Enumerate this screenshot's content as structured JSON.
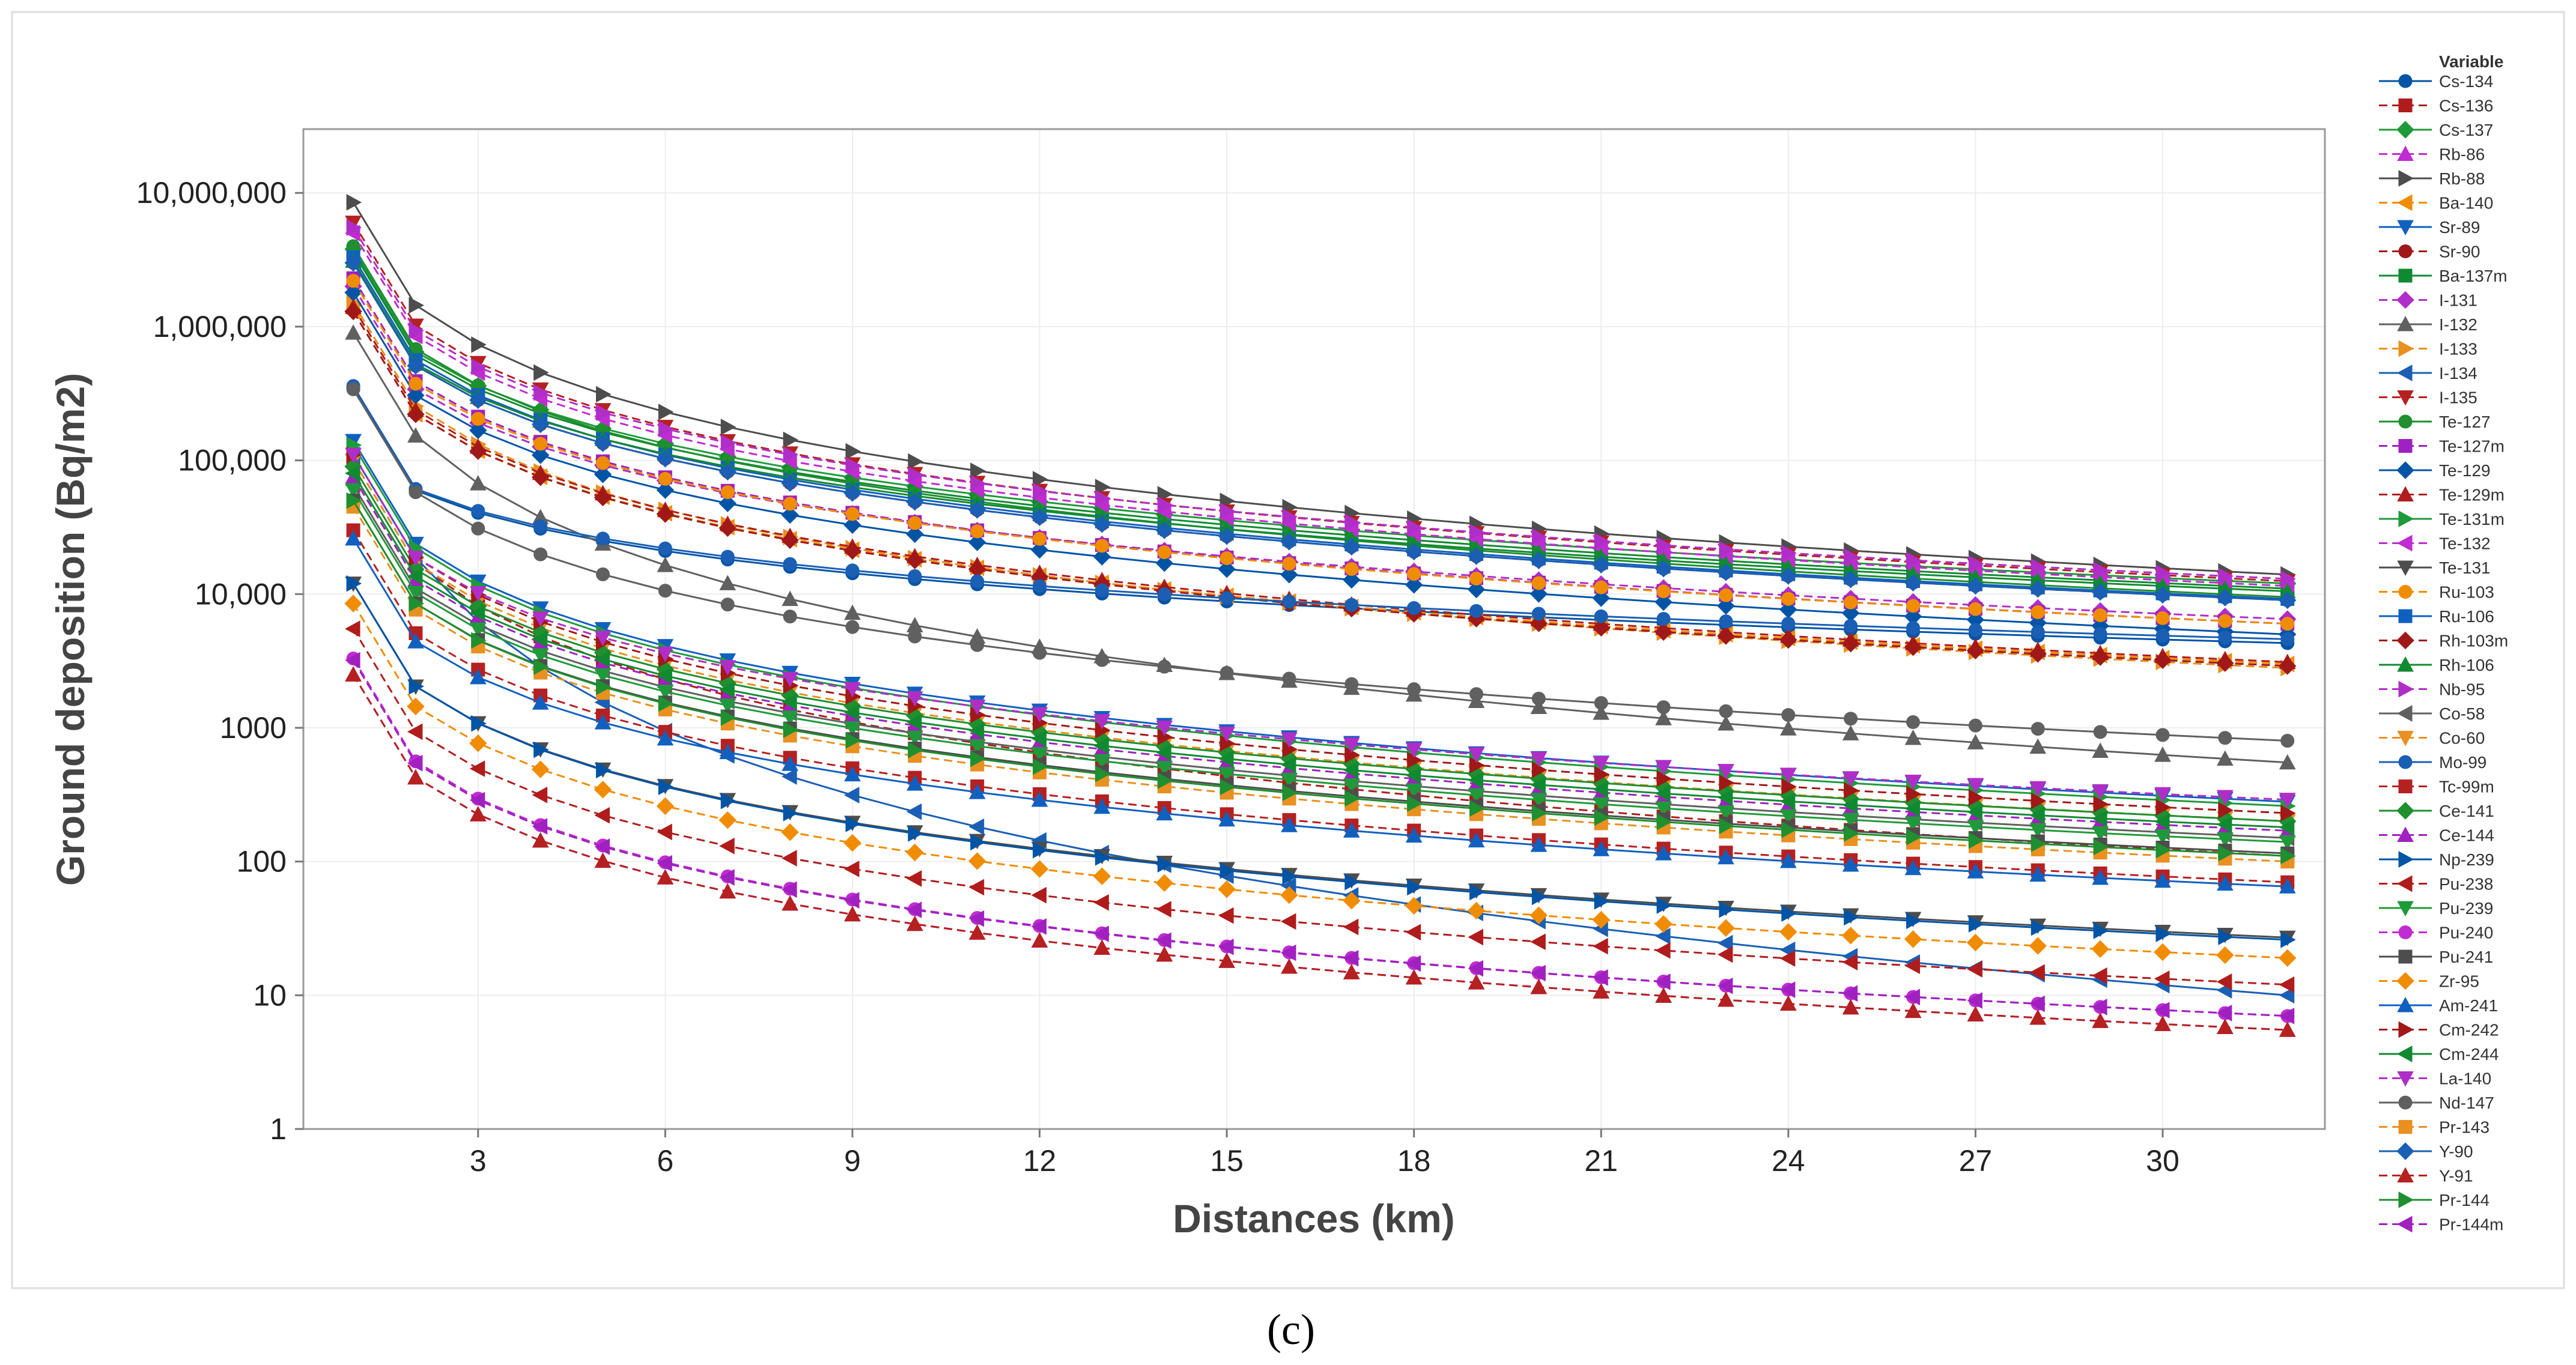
{
  "caption": "(c)",
  "colors": [
    "#0054a6",
    "#b01c1c",
    "#1f9a3a",
    "#c02bd2",
    "#4d4d4d",
    "#f08c00",
    "#1060c0",
    "#a01818",
    "#108a30",
    "#b02ec8",
    "#606060",
    "#e89020",
    "#1a5fb4",
    "#b52020",
    "#1f8f2f",
    "#a020c0"
  ],
  "chart_data": {
    "type": "line",
    "title": "",
    "xlabel": "Distances (km)",
    "ylabel": "Ground deposition (Bq/m2)",
    "yscale": "log",
    "xlim": [
      0.2,
      32.6
    ],
    "ylim": [
      1,
      30000000
    ],
    "xticks": [
      3,
      6,
      9,
      12,
      15,
      18,
      21,
      24,
      27,
      30
    ],
    "xtick_labels": [
      "3",
      "6",
      "9",
      "12",
      "15",
      "18",
      "21",
      "24",
      "27",
      "30"
    ],
    "yticks": [
      1,
      10,
      100,
      1000,
      10000,
      100000,
      1000000,
      10000000
    ],
    "ytick_labels": [
      "1",
      "10",
      "100",
      "1000",
      "10,000",
      "100,000",
      "1,000,000",
      "10,000,000"
    ],
    "grid": true,
    "legend_title": "Variable",
    "legend_position": "right",
    "x": [
      1,
      2,
      3,
      4,
      5,
      6,
      7,
      8,
      9,
      10,
      11,
      12,
      13,
      14,
      15,
      16,
      17,
      18,
      19,
      20,
      21,
      22,
      23,
      24,
      25,
      26,
      27,
      28,
      29,
      30,
      31,
      32
    ],
    "series": [
      {
        "name": "Cs-134",
        "start": 350000,
        "end": 4300
      },
      {
        "name": "Cs-136",
        "start": 100000,
        "end": 110
      },
      {
        "name": "Cs-137",
        "start": 3800000,
        "end": 12000
      },
      {
        "name": "Rb-86",
        "start": 2500,
        "end": 5.5
      },
      {
        "name": "Rb-88",
        "start": 8500000,
        "end": 14000
      },
      {
        "name": "Ba-140",
        "start": 1300000,
        "end": 3000
      },
      {
        "name": "Sr-89",
        "start": 140000,
        "end": 280
      },
      {
        "name": "Sr-90",
        "start": 3000000,
        "end": 9000
      },
      {
        "name": "Ba-137m",
        "start": 3600000,
        "end": 11000
      },
      {
        "name": "I-131",
        "start": 2000000,
        "end": 6500
      },
      {
        "name": "I-132",
        "start": 900000,
        "end": 550
      },
      {
        "name": "I-133",
        "start": 1500000,
        "end": 2800
      },
      {
        "name": "I-134",
        "start": 110000,
        "end": 10
      },
      {
        "name": "I-135",
        "start": 6000000,
        "end": 12500
      },
      {
        "name": "Te-127",
        "start": 4000000,
        "end": 9500
      },
      {
        "name": "Te-127m",
        "start": 2300000,
        "end": 6000
      },
      {
        "name": "Te-129",
        "start": 1800000,
        "end": 5000
      },
      {
        "name": "Te-129m",
        "start": 1400000,
        "end": 3100
      },
      {
        "name": "Te-131m",
        "start": 130000,
        "end": 260
      },
      {
        "name": "Te-132",
        "start": 5000000,
        "end": 11500
      },
      {
        "name": "Te-131",
        "start": 12000,
        "end": 27
      },
      {
        "name": "Ru-103",
        "start": 2200000,
        "end": 6000
      },
      {
        "name": "Ru-106",
        "start": 3300000,
        "end": 9200
      },
      {
        "name": "Rh-103m",
        "start": 1300000,
        "end": 2900
      },
      {
        "name": "Rh-106",
        "start": 3100000,
        "end": 10500
      },
      {
        "name": "Nb-95",
        "start": 5500000,
        "end": 13000
      },
      {
        "name": "Co-58",
        "start": 65000,
        "end": 150
      },
      {
        "name": "Co-60",
        "start": 100000,
        "end": 200
      },
      {
        "name": "Mo-99",
        "start": 360000,
        "end": 4600
      },
      {
        "name": "Tc-99m",
        "start": 30000,
        "end": 70
      },
      {
        "name": "Ce-141",
        "start": 90000,
        "end": 200
      },
      {
        "name": "Ce-144",
        "start": 75000,
        "end": 170
      },
      {
        "name": "Np-239",
        "start": 12000,
        "end": 26
      },
      {
        "name": "Pu-238",
        "start": 5500,
        "end": 12
      },
      {
        "name": "Pu-239",
        "start": 60000,
        "end": 140
      },
      {
        "name": "Pu-240",
        "start": 3300,
        "end": 7
      },
      {
        "name": "Pu-241",
        "start": 50000,
        "end": 115
      },
      {
        "name": "Zr-95",
        "start": 8500,
        "end": 19
      },
      {
        "name": "Am-241",
        "start": 26000,
        "end": 65
      },
      {
        "name": "Cm-242",
        "start": 110000,
        "end": 230
      },
      {
        "name": "Cm-244",
        "start": 80000,
        "end": 180
      },
      {
        "name": "La-140",
        "start": 110000,
        "end": 290
      },
      {
        "name": "Nd-147",
        "start": 340000,
        "end": 800
      },
      {
        "name": "Pr-143",
        "start": 45000,
        "end": 100
      },
      {
        "name": "Y-90",
        "start": 3000000,
        "end": 9000
      },
      {
        "name": "Y-91",
        "start": 2500,
        "end": 5.5
      },
      {
        "name": "Pr-144",
        "start": 50000,
        "end": 110
      },
      {
        "name": "Pr-144m",
        "start": 3200,
        "end": 7
      }
    ]
  }
}
